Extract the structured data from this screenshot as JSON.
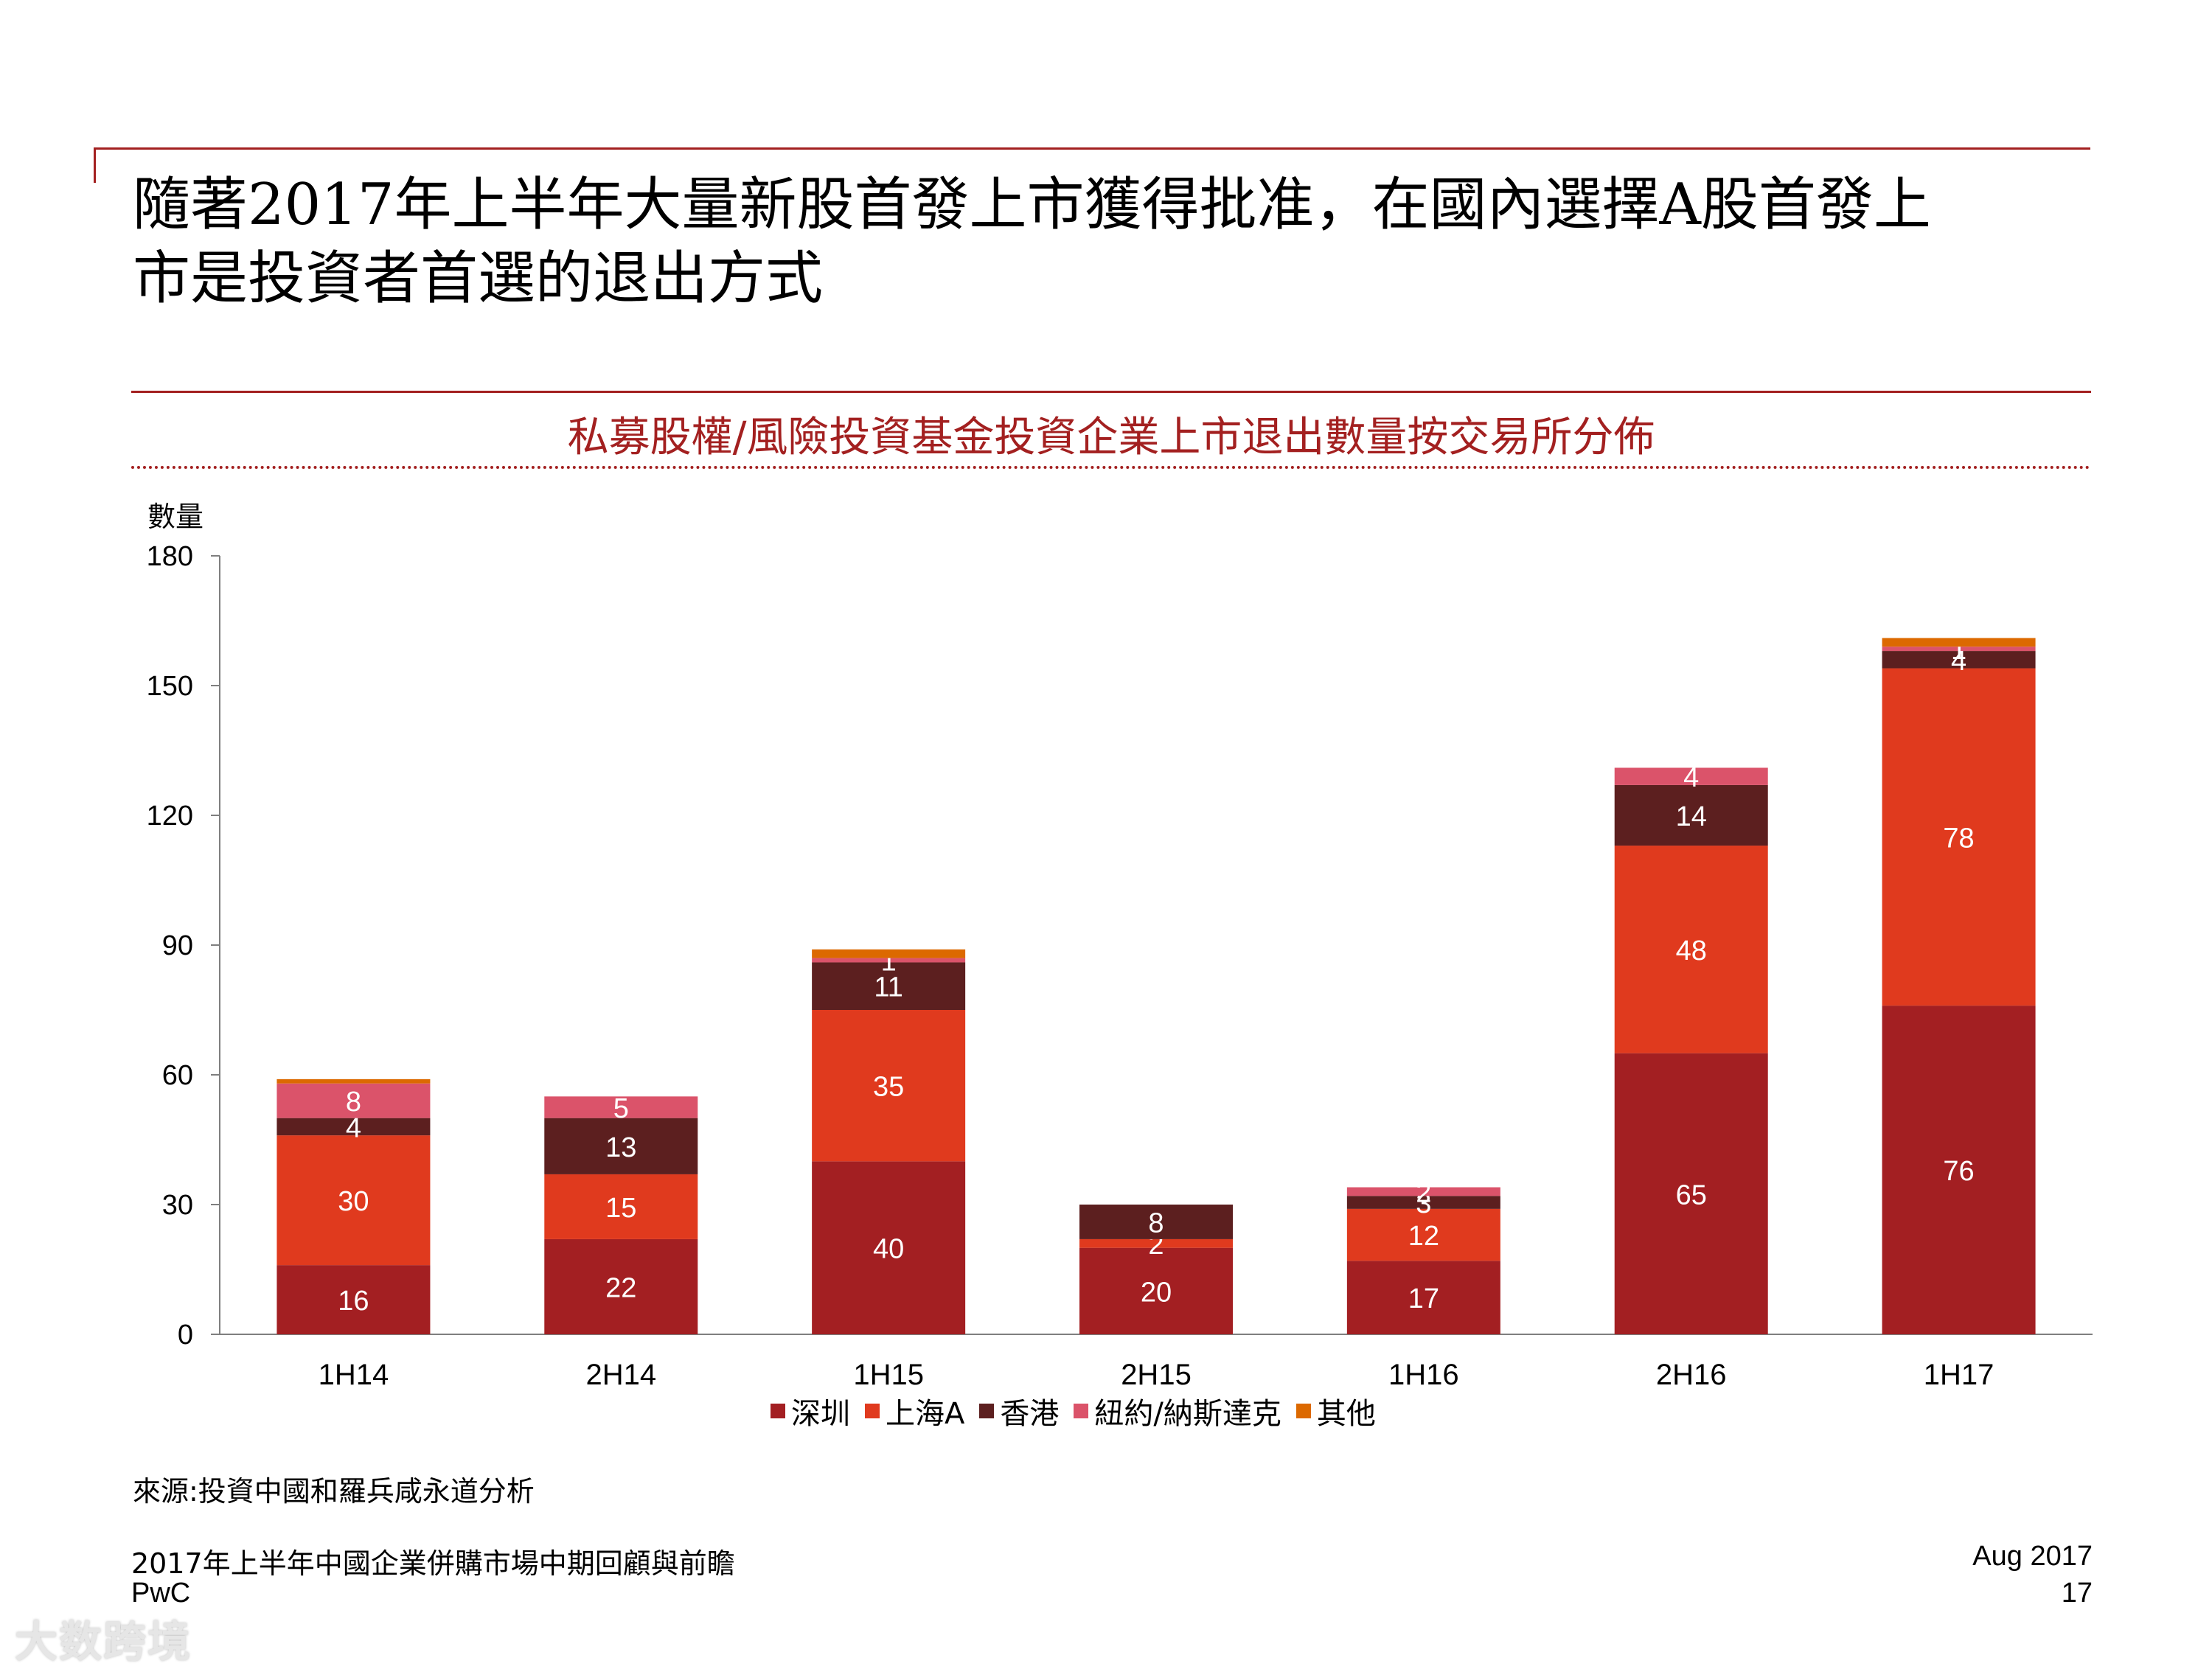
{
  "headline": {
    "line1": "隨著2017年上半年大量新股首發上市獲得批准，在國內選擇A股首發上",
    "line2": "市是投資者首選的退出方式"
  },
  "chart_data": {
    "type": "bar",
    "stacked": true,
    "title": "私募股權/風險投資基金投資企業上市退出數量按交易所分佈",
    "ylabel": "數量",
    "xlabel": "",
    "ylim": [
      0,
      180
    ],
    "yticks": [
      0,
      30,
      60,
      90,
      120,
      150,
      180
    ],
    "categories": [
      "1H14",
      "2H14",
      "1H15",
      "2H15",
      "1H16",
      "2H16",
      "1H17"
    ],
    "series": [
      {
        "name": "深圳",
        "color": "#a31f22",
        "values": [
          16,
          22,
          40,
          20,
          17,
          65,
          76
        ]
      },
      {
        "name": "上海A",
        "color": "#e03a1e",
        "values": [
          30,
          15,
          35,
          2,
          12,
          48,
          78
        ]
      },
      {
        "name": "香港",
        "color": "#5c1f1f",
        "values": [
          4,
          13,
          11,
          8,
          3,
          14,
          4
        ]
      },
      {
        "name": "紐約/納斯達克",
        "color": "#db536a",
        "values": [
          8,
          5,
          1,
          0,
          2,
          4,
          1
        ]
      },
      {
        "name": "其他",
        "color": "#dc6900",
        "values": [
          1,
          0,
          2,
          0,
          0,
          0,
          2
        ]
      }
    ],
    "legend_position": "bottom",
    "grid": false
  },
  "source": "來源:投資中國和羅兵咸永道分析",
  "footer": {
    "report_title": "2017年上半年中國企業併購市場中期回顧與前瞻",
    "company": "PwC",
    "date": "Aug 2017",
    "page": "17"
  },
  "watermark": "大数跨境"
}
